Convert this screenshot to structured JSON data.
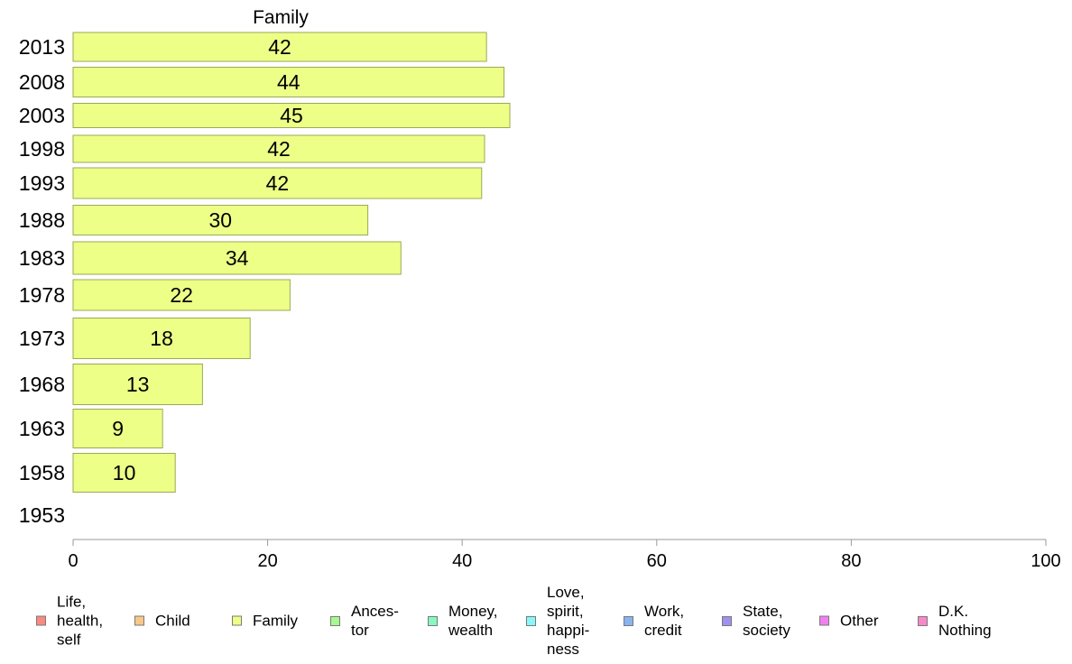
{
  "chart_data": {
    "type": "bar",
    "orientation": "horizontal",
    "title": "Family",
    "categories": [
      "2013",
      "2008",
      "2003",
      "1998",
      "1993",
      "1988",
      "1983",
      "1978",
      "1973",
      "1968",
      "1963",
      "1958",
      "1953"
    ],
    "series": [
      {
        "name": "Family",
        "values": [
          42,
          44,
          45,
          42,
          42,
          30,
          34,
          22,
          18,
          13,
          9,
          10,
          null
        ]
      }
    ],
    "precise_values": [
      42.5,
      44.3,
      44.9,
      42.3,
      42.0,
      30.3,
      33.7,
      22.3,
      18.2,
      13.3,
      9.2,
      10.5,
      null
    ],
    "bar_color": "#eeff88",
    "bar_border_color": "#9aaa55",
    "xlim": [
      0,
      100
    ],
    "x_ticks": [
      0,
      20,
      40,
      60,
      80,
      100
    ],
    "grid": false,
    "legend_position": "bottom"
  },
  "legend": [
    {
      "label": "Life,\nhealth,\nself",
      "color": "#f88a80"
    },
    {
      "label": "Child",
      "color": "#f8c888"
    },
    {
      "label": "Family",
      "color": "#eeff88"
    },
    {
      "label": "Ances-\ntor",
      "color": "#a8f890"
    },
    {
      "label": "Money,\nwealth",
      "color": "#88f8c0"
    },
    {
      "label": "Love,\nspirit,\nhappi-\nness",
      "color": "#88f8f8"
    },
    {
      "label": "Work,\ncredit",
      "color": "#88b4f0"
    },
    {
      "label": "State,\nsociety",
      "color": "#a090f0"
    },
    {
      "label": "Other",
      "color": "#f080f0"
    },
    {
      "label": "D.K.\nNothing",
      "color": "#f888cc"
    }
  ]
}
